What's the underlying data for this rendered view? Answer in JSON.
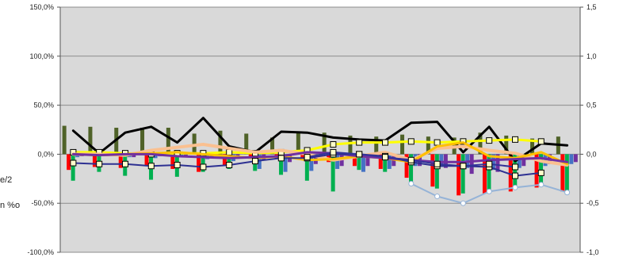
{
  "chart_data": {
    "type": "bar",
    "title": "",
    "grid": true,
    "plot_background": "#d9d9d9",
    "left_axis": {
      "ylim": [
        -1.0,
        1.5
      ],
      "ticks": [
        -1.0,
        -0.5,
        0.0,
        0.5,
        1.0,
        1.5
      ],
      "tick_labels": [
        "-100,0%",
        "-50,0%",
        "0,0%",
        "50,0%",
        "100,0%",
        "150,0%"
      ]
    },
    "right_axis": {
      "ylim": [
        -1.0,
        1.5
      ],
      "ticks": [
        -1.0,
        -0.5,
        0.0,
        0.5,
        1.0,
        1.5
      ],
      "tick_labels": [
        "-1,0",
        "-0,5",
        "0,0",
        "0,5",
        "1,0",
        "1,5"
      ]
    },
    "left_fragments": [
      "e/2",
      "n %o"
    ],
    "n_periods": 20,
    "bar_series": [
      {
        "color": "#4f6228",
        "values": [
          0.29,
          0.28,
          0.27,
          0.27,
          0.27,
          0.21,
          0.24,
          0.21,
          0.17,
          0.22,
          0.22,
          0.19,
          0.18,
          0.2,
          0.18,
          0.17,
          0.22,
          0.19,
          0.16,
          0.18
        ]
      },
      {
        "color": "#ff0000",
        "values": [
          -0.16,
          -0.13,
          -0.14,
          -0.12,
          -0.15,
          -0.18,
          -0.12,
          -0.03,
          -0.05,
          -0.05,
          -0.08,
          -0.12,
          -0.15,
          -0.24,
          -0.33,
          -0.42,
          -0.4,
          -0.38,
          -0.34,
          -0.38
        ]
      },
      {
        "color": "#00b050",
        "values": [
          -0.27,
          -0.18,
          -0.22,
          -0.26,
          -0.23,
          -0.18,
          -0.15,
          -0.17,
          -0.21,
          -0.27,
          -0.38,
          -0.16,
          -0.18,
          -0.31,
          -0.35,
          -0.4,
          -0.4,
          -0.34,
          -0.32,
          -0.41
        ]
      },
      {
        "color": "#4472c4",
        "values": [
          -0.03,
          -0.02,
          -0.03,
          -0.04,
          -0.03,
          -0.05,
          -0.07,
          -0.15,
          -0.18,
          -0.17,
          -0.15,
          -0.18,
          -0.15,
          -0.12,
          -0.13,
          -0.14,
          -0.16,
          -0.14,
          -0.12,
          -0.1
        ]
      },
      {
        "color": "#7030a0",
        "values": [
          -0.02,
          -0.02,
          -0.03,
          -0.02,
          -0.03,
          -0.04,
          -0.04,
          -0.06,
          -0.08,
          -0.1,
          -0.12,
          -0.12,
          -0.12,
          -0.12,
          -0.14,
          -0.2,
          -0.18,
          -0.12,
          -0.1,
          -0.08
        ]
      }
    ],
    "line_series": [
      {
        "color": "#000000",
        "width": 3,
        "marker": "none",
        "values": [
          0.24,
          0.01,
          0.22,
          0.28,
          0.12,
          0.37,
          0.08,
          0.02,
          0.23,
          0.22,
          0.17,
          0.15,
          0.14,
          0.32,
          0.33,
          0.02,
          0.28,
          -0.07,
          0.11,
          0.09
        ]
      },
      {
        "color": "#ffff00",
        "width": 3,
        "marker": "square",
        "values": [
          0.02,
          0.02,
          0.01,
          0.0,
          0.01,
          0.01,
          0.02,
          0.01,
          0.02,
          0.04,
          0.1,
          0.12,
          0.12,
          0.13,
          0.12,
          0.13,
          0.14,
          0.15,
          0.13,
          null
        ]
      },
      {
        "color": "#fac090",
        "width": 4,
        "marker": "none",
        "values": [
          0.0,
          0.0,
          -0.01,
          0.04,
          0.07,
          0.1,
          0.06,
          0.02,
          0.04,
          0.0,
          -0.06,
          -0.02,
          0.02,
          -0.06,
          0.06,
          0.08,
          0.04,
          0.01,
          -0.07,
          -0.11
        ]
      },
      {
        "color": "#ffc000",
        "width": 3,
        "marker": "none",
        "values": [
          0.0,
          -0.01,
          0.0,
          0.01,
          0.02,
          0.0,
          -0.02,
          -0.04,
          -0.02,
          -0.06,
          -0.05,
          -0.02,
          -0.04,
          -0.08,
          0.08,
          0.12,
          -0.02,
          -0.04,
          0.02,
          -0.1
        ]
      },
      {
        "color": "#7030a0",
        "width": 3,
        "marker": "none",
        "values": [
          0.0,
          -0.01,
          0.0,
          0.0,
          -0.02,
          -0.03,
          -0.04,
          -0.03,
          -0.02,
          0.02,
          0.01,
          -0.02,
          -0.04,
          -0.06,
          -0.08,
          -0.08,
          -0.06,
          -0.05,
          -0.04,
          -0.08
        ]
      },
      {
        "color": "#2e3192",
        "width": 2,
        "marker": "square",
        "values": [
          -0.09,
          -0.1,
          -0.1,
          -0.12,
          -0.11,
          -0.13,
          -0.11,
          -0.07,
          -0.04,
          -0.04,
          0.0,
          0.0,
          -0.02,
          -0.08,
          -0.12,
          -0.12,
          -0.13,
          -0.22,
          -0.19,
          null
        ]
      },
      {
        "color": "#95b3d7",
        "width": 2,
        "marker": "circle",
        "values": [
          null,
          null,
          null,
          null,
          null,
          null,
          null,
          null,
          null,
          null,
          null,
          null,
          null,
          -0.3,
          -0.43,
          -0.5,
          -0.38,
          -0.34,
          -0.31,
          -0.39
        ]
      },
      {
        "color": "#333399",
        "width": 2,
        "marker": "square",
        "values": [
          null,
          null,
          null,
          null,
          null,
          null,
          null,
          null,
          null,
          -0.03,
          0.02,
          0.0,
          -0.03,
          -0.06,
          -0.1,
          -0.12,
          -0.1,
          -0.13,
          null,
          null
        ]
      }
    ]
  }
}
